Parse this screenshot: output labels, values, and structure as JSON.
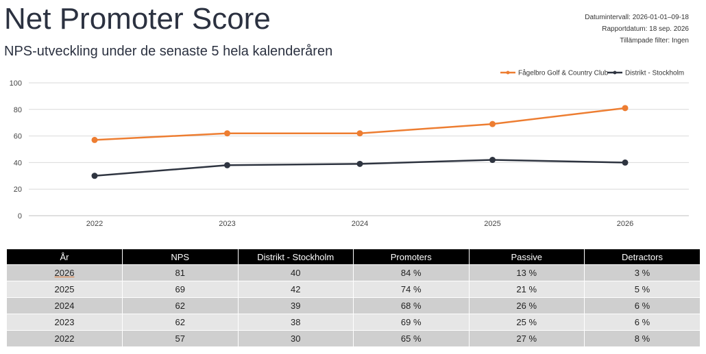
{
  "report": {
    "title": "Net Promoter Score",
    "subtitle": "NPS-utveckling under de senaste 5 hela kalenderåren",
    "meta": [
      "Datumintervall: 2026-01-01–09-18",
      "Rapportdatum: 18 sep. 2026",
      "Tillämpade filter: Ingen"
    ]
  },
  "chart_data": {
    "type": "line",
    "categories": [
      "2022",
      "2023",
      "2024",
      "2025",
      "2026"
    ],
    "series": [
      {
        "name": "Fågelbro Golf & Country Club",
        "values": [
          57,
          62,
          62,
          69,
          81
        ],
        "color": "#ed7d31"
      },
      {
        "name": "Distrikt - Stockholm",
        "values": [
          30,
          38,
          39,
          42,
          40
        ],
        "color": "#2e3440"
      }
    ],
    "ylim": [
      0,
      100
    ],
    "yticks": [
      0,
      20,
      40,
      60,
      80,
      100
    ],
    "grid": true,
    "legend": "top-right"
  },
  "table": {
    "headers": [
      "År",
      "NPS",
      "Distrikt - Stockholm",
      "Promoters",
      "Passive",
      "Detractors"
    ],
    "rows": [
      [
        "2026",
        "81",
        "40",
        "84 %",
        "13 %",
        "3 %"
      ],
      [
        "2025",
        "69",
        "42",
        "74 %",
        "21 %",
        "5 %"
      ],
      [
        "2024",
        "62",
        "39",
        "68 %",
        "26 %",
        "6 %"
      ],
      [
        "2023",
        "62",
        "38",
        "69 %",
        "25 %",
        "6 %"
      ],
      [
        "2022",
        "57",
        "30",
        "65 %",
        "27 %",
        "8 %"
      ]
    ]
  }
}
